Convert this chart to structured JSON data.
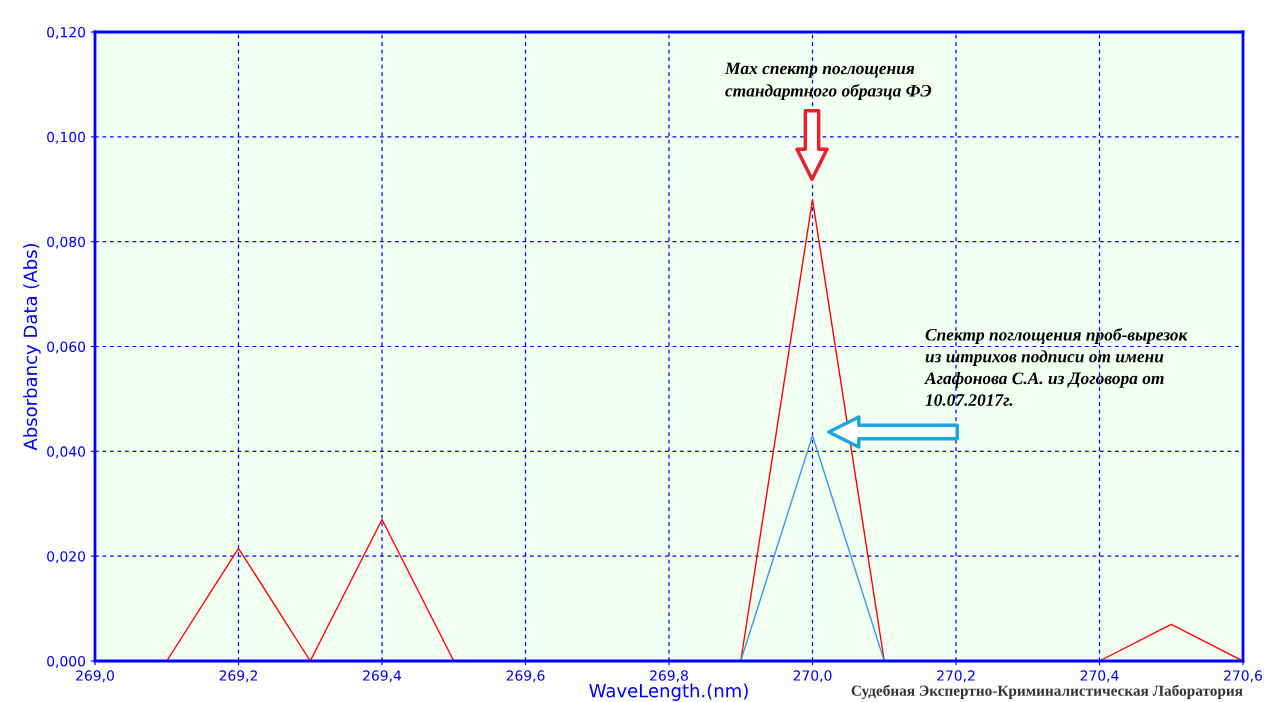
{
  "chart_data": {
    "type": "line",
    "xlabel": "WaveLength.(nm)",
    "ylabel": "Absorbancy Data (Abs)",
    "x": [
      269.0,
      269.1,
      269.2,
      269.3,
      269.4,
      269.5,
      269.6,
      269.7,
      269.8,
      269.9,
      270.0,
      270.1,
      270.2,
      270.3,
      270.4,
      270.5,
      270.6
    ],
    "series": [
      {
        "color": "#ff0000",
        "values": [
          0,
          0,
          0.0215,
          0,
          0.027,
          0,
          0,
          0,
          0,
          0,
          0.088,
          0,
          0,
          0,
          0,
          0.007,
          0
        ]
      },
      {
        "color": "#3399e6",
        "values": [
          null,
          null,
          null,
          null,
          null,
          null,
          null,
          null,
          null,
          0,
          0.043,
          0,
          null,
          null,
          null,
          null,
          null
        ]
      }
    ],
    "xlim": [
      269.0,
      270.6
    ],
    "xticks": [
      {
        "value": 269.0,
        "label": "269,0"
      },
      {
        "value": 269.2,
        "label": "269,2"
      },
      {
        "value": 269.4,
        "label": "269,4"
      },
      {
        "value": 269.6,
        "label": "269,6"
      },
      {
        "value": 269.8,
        "label": "269,8"
      },
      {
        "value": 270.0,
        "label": "270,0"
      },
      {
        "value": 270.2,
        "label": "270,2"
      },
      {
        "value": 270.4,
        "label": "270,4"
      },
      {
        "value": 270.6,
        "label": "270,6"
      }
    ],
    "ylim": [
      0,
      0.12
    ],
    "yticks": [
      {
        "value": 0,
        "label": "0,000"
      },
      {
        "value": 0.02,
        "label": "0,020"
      },
      {
        "value": 0.04,
        "label": "0,040"
      },
      {
        "value": 0.06,
        "label": "0,060"
      },
      {
        "value": 0.08,
        "label": "0,080"
      },
      {
        "value": 0.1,
        "label": "0,100"
      },
      {
        "value": 0.12,
        "label": "0,120"
      }
    ],
    "grid": true,
    "legend": false,
    "marker": "none",
    "line_style": "solid",
    "annotations": [
      "Max спектр поглощения\nстандартного образца ФЭ",
      "Спектр поглощения проб-вырезок\nиз штрихов подписи от имени\nАгафонова С.А. из Договора от\n10.07.2017г.",
      "Судебная Экспертно-Криминалистическая Лаборатория"
    ]
  }
}
